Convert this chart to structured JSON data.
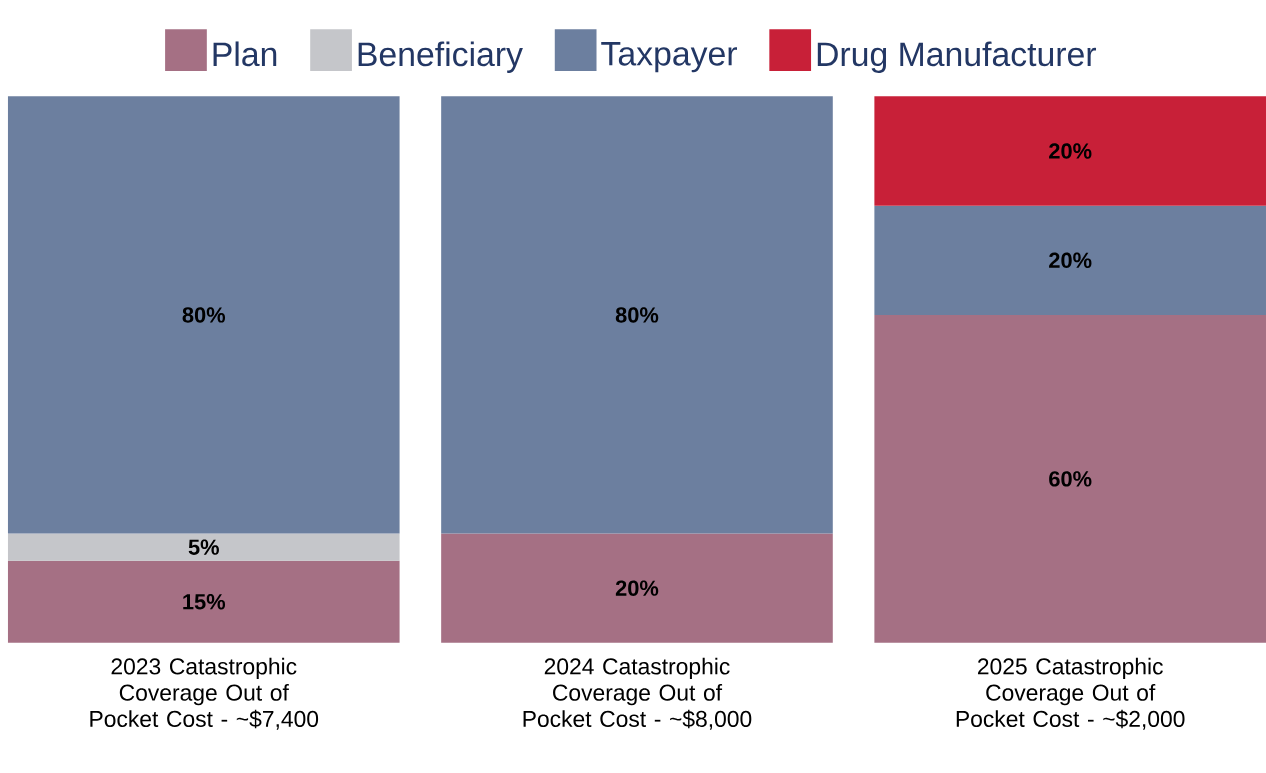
{
  "chart_data": {
    "type": "bar",
    "stacked": true,
    "legend": "top",
    "tick_labels": "x",
    "ylim": [
      0,
      100
    ],
    "categories": [
      "2023 Catastrophic Coverage Out of Pocket Cost - ~$7,400",
      "2024 Catastrophic Coverage Out of Pocket Cost - ~$8,000",
      "2025 Catastrophic Coverage Out of Pocket Cost - ~$2,000"
    ],
    "series": [
      {
        "name": "Plan",
        "color": "#a57084",
        "values": [
          15,
          20,
          60
        ],
        "value_labels": [
          "15%",
          "20%",
          "60%"
        ]
      },
      {
        "name": "Beneficiary",
        "color": "#c5c6ca",
        "values": [
          5,
          null,
          null
        ],
        "value_labels": [
          "5%",
          null,
          null
        ]
      },
      {
        "name": "Taxpayer",
        "color": "#6c7f9f",
        "values": [
          80,
          80,
          20
        ],
        "value_labels": [
          "80%",
          "80%",
          "20%"
        ]
      },
      {
        "name": "Drug Manufacturer",
        "color": "#c82038",
        "values": [
          null,
          null,
          20
        ],
        "value_labels": [
          null,
          null,
          "20%"
        ]
      }
    ]
  }
}
